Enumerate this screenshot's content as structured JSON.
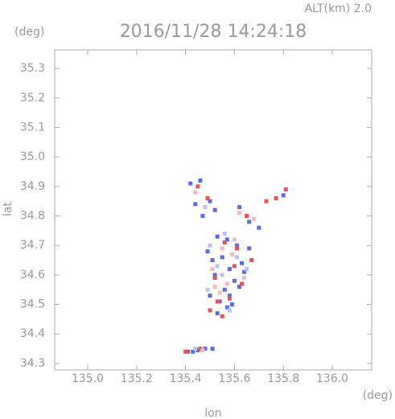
{
  "chart_data": {
    "type": "scatter",
    "title": "2016/11/28 14:24:18",
    "annotation": "ALT(km) 2.0",
    "y_unit": "(deg)",
    "x_unit": "(deg)",
    "x_label": "lon",
    "y_label": "lat",
    "xlim": [
      134.865,
      136.161
    ],
    "ylim": [
      34.278,
      35.363
    ],
    "xticks": [
      {
        "value": 135,
        "label": "135.0"
      },
      135.2,
      135.4,
      135.6,
      135.8,
      {
        "value": 136,
        "label": "136.0"
      }
    ],
    "yticks": [
      34.3,
      34.4,
      34.5,
      34.6,
      34.7,
      34.8,
      34.9,
      {
        "value": 35,
        "label": "35.0"
      },
      35.1,
      35.2,
      35.3
    ],
    "series": [
      {
        "color": "#5a6be8",
        "x": [
          135.42,
          135.46,
          135.44,
          135.5,
          135.52,
          135.47,
          135.62,
          135.66,
          135.7,
          135.8,
          135.53,
          135.57,
          135.61,
          135.49,
          135.51,
          135.55,
          135.63,
          135.58,
          135.52,
          135.6,
          135.64,
          135.56,
          135.5,
          135.54,
          135.59,
          135.62,
          135.53,
          135.57,
          135.41,
          135.45,
          135.48,
          135.43,
          135.47,
          135.51,
          135.66,
          135.58
        ],
        "values": [
          34.91,
          34.92,
          34.84,
          34.85,
          34.82,
          34.8,
          34.83,
          34.78,
          34.76,
          34.87,
          34.73,
          34.72,
          34.7,
          34.68,
          34.65,
          34.66,
          34.64,
          34.62,
          34.6,
          34.58,
          34.61,
          34.55,
          34.53,
          34.51,
          34.5,
          34.56,
          34.47,
          34.49,
          34.34,
          34.345,
          34.35,
          34.34,
          34.345,
          34.35,
          34.69,
          34.53
        ]
      },
      {
        "color": "#e8505a",
        "x": [
          135.45,
          135.49,
          135.65,
          135.73,
          135.77,
          135.81,
          135.56,
          135.6,
          135.52,
          135.63,
          135.58,
          135.5,
          135.67,
          135.55,
          135.53,
          135.61,
          135.46,
          135.4
        ],
        "values": [
          34.9,
          34.86,
          34.8,
          34.85,
          34.86,
          34.89,
          34.71,
          34.63,
          34.59,
          34.57,
          34.52,
          34.48,
          34.65,
          34.46,
          34.51,
          34.69,
          34.35,
          34.34
        ]
      },
      {
        "color": "#f4b8c0",
        "x": [
          135.44,
          135.62,
          135.68,
          135.55,
          135.59,
          135.51,
          135.64,
          135.57,
          135.54,
          135.6,
          135.52,
          135.47
        ],
        "values": [
          34.88,
          34.81,
          34.79,
          34.69,
          34.67,
          34.62,
          34.59,
          34.57,
          34.54,
          34.72,
          34.56,
          34.345
        ]
      },
      {
        "color": "#b8c0f4",
        "x": [
          135.48,
          135.5,
          135.56,
          135.61,
          135.53,
          135.65,
          135.49,
          135.58,
          135.55,
          135.44
        ],
        "values": [
          34.83,
          34.7,
          34.74,
          34.66,
          34.63,
          34.62,
          34.55,
          34.48,
          34.6,
          34.35
        ]
      }
    ]
  }
}
